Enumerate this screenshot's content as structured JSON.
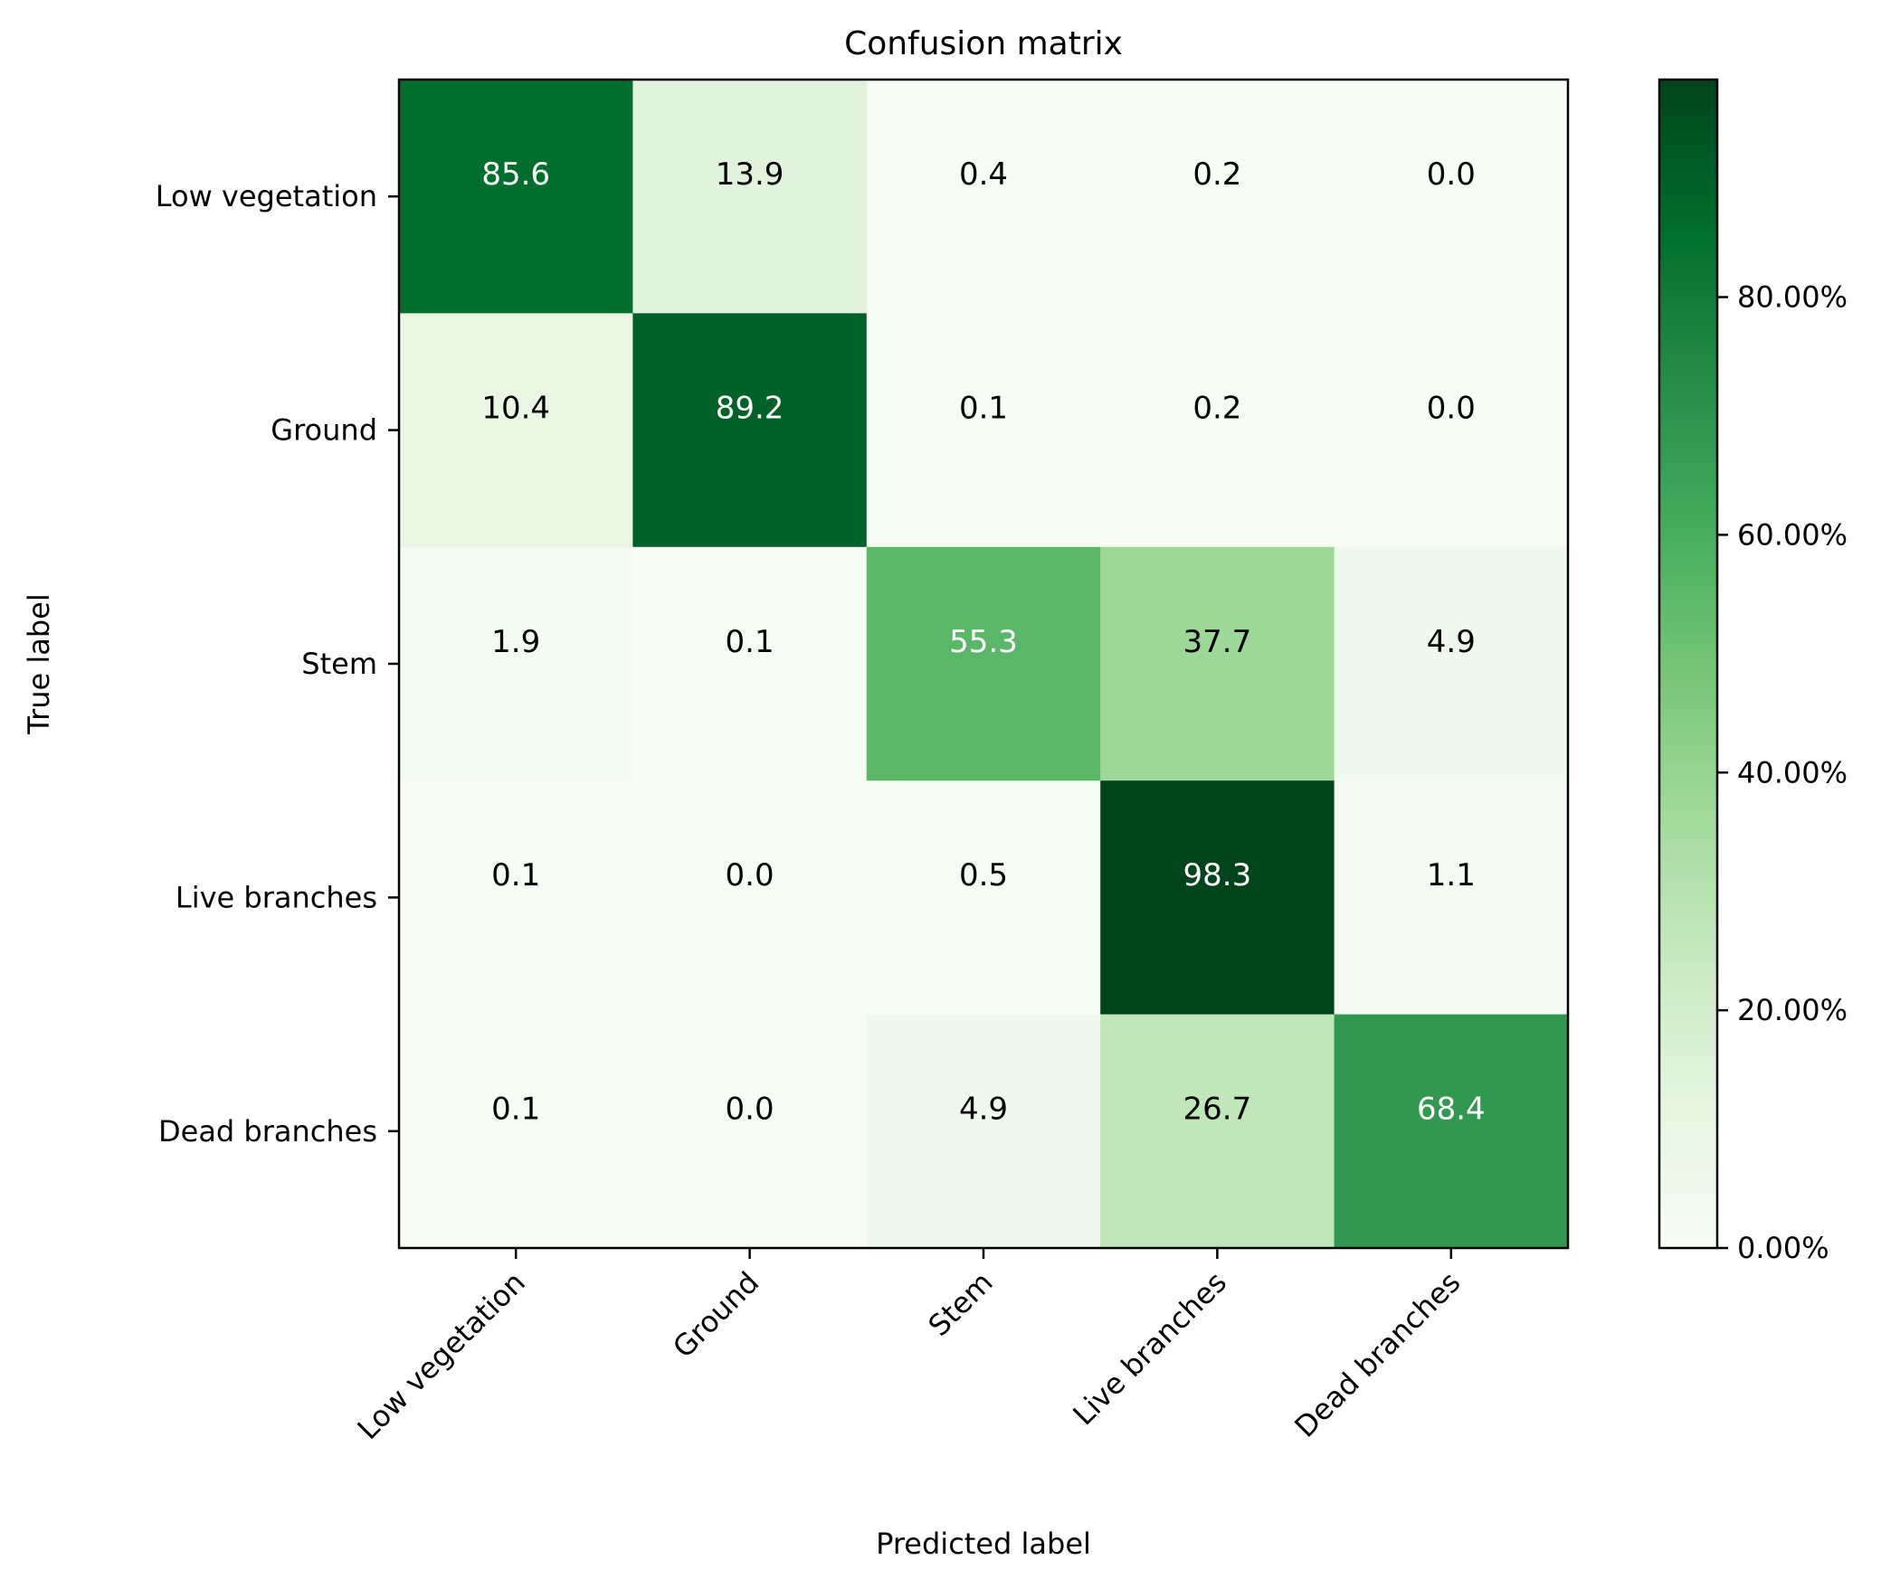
{
  "chart_data": {
    "type": "heatmap",
    "title": "Confusion matrix",
    "xlabel": "Predicted label",
    "ylabel": "True label",
    "x_categories": [
      "Low vegetation",
      "Ground",
      "Stem",
      "Live branches",
      "Dead branches"
    ],
    "y_categories": [
      "Low vegetation",
      "Ground",
      "Stem",
      "Live branches",
      "Dead branches"
    ],
    "values": [
      [
        85.6,
        13.9,
        0.4,
        0.2,
        0.0
      ],
      [
        10.4,
        89.2,
        0.1,
        0.2,
        0.0
      ],
      [
        1.9,
        0.1,
        55.3,
        37.7,
        4.9
      ],
      [
        0.1,
        0.0,
        0.5,
        98.3,
        1.1
      ],
      [
        0.1,
        0.0,
        4.9,
        26.7,
        68.4
      ]
    ],
    "value_range": [
      0,
      98.3
    ],
    "colormap": "Greens",
    "colorbar": {
      "ticks": [
        0,
        20,
        40,
        60,
        80
      ],
      "tick_labels": [
        "0.00%",
        "20.00%",
        "40.00%",
        "60.00%",
        "80.00%"
      ]
    },
    "text_colors": {
      "light": "#ffffff",
      "dark": "#000000"
    }
  }
}
